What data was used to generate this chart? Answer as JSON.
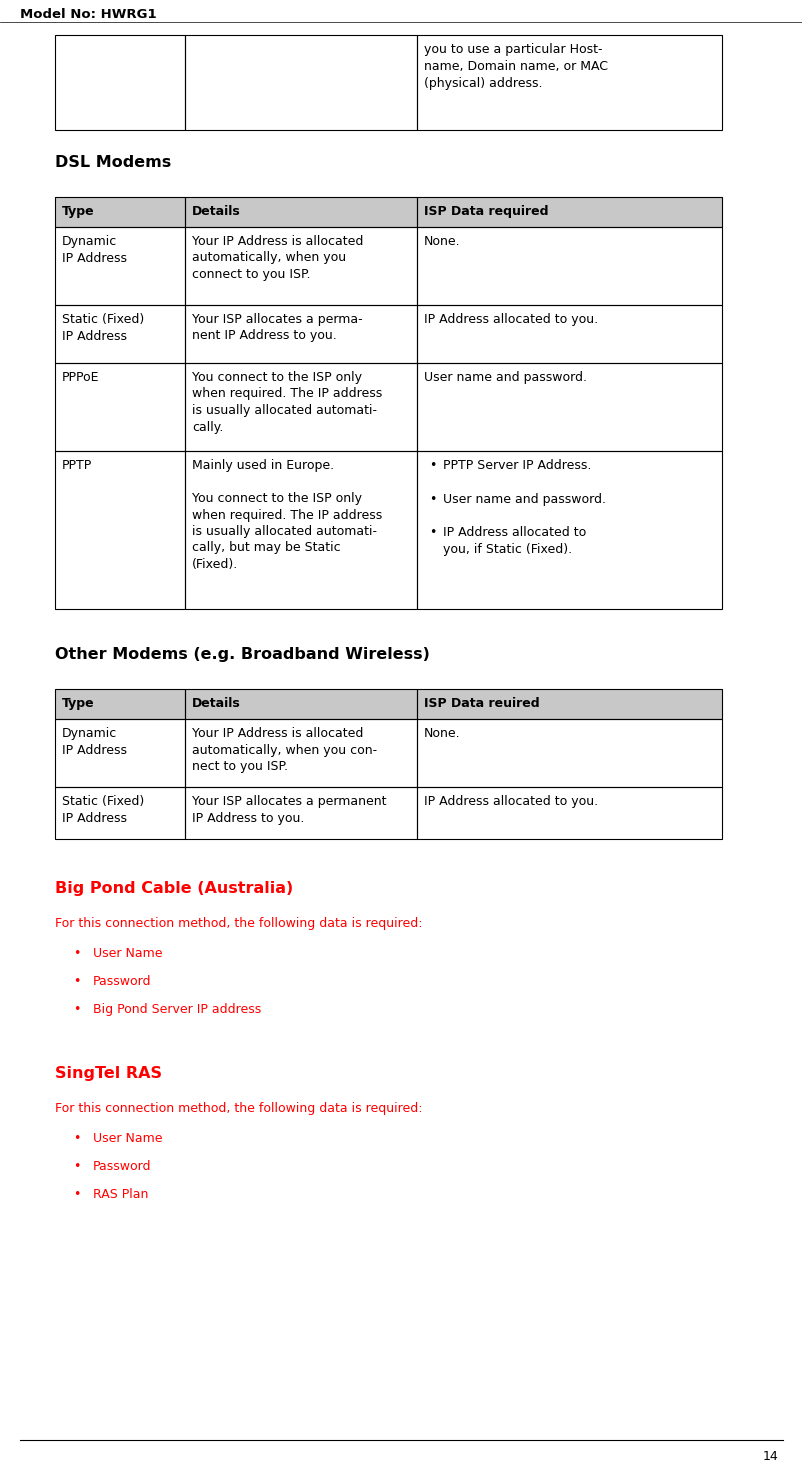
{
  "page_title": "Model No: HWRG1",
  "page_number": "14",
  "background_color": "#ffffff",
  "text_color": "#000000",
  "red_color": "#ff0000",
  "header_bg": "#c8c8c8",
  "table_border_color": "#000000",
  "top_table_text": "you to use a particular Host-\nname, Domain name, or MAC\n(physical) address.",
  "dsl_title": "DSL Modems",
  "dsl_headers": [
    "Type",
    "Details",
    "ISP Data requ​ired"
  ],
  "dsl_rows": [
    {
      "type": "Dynamic\nIP Address",
      "details": "Your IP Address is allocated\nautomatically, when you\nconnect to you ISP.",
      "isp": "None.",
      "isp_bullets": []
    },
    {
      "type": "Static (Fixed)\nIP Address",
      "details": "Your ISP allocates a perma-\nnent IP Address to you.",
      "isp": "IP Address allocated to you.",
      "isp_bullets": []
    },
    {
      "type": "PPPoE",
      "details": "You connect to the ISP only\nwhen required. The IP address\nis usually allocated automati-\ncally.",
      "isp": "User name and password.",
      "isp_bullets": []
    },
    {
      "type": "PPTP",
      "details": "Mainly used in Europe.\n\nYou connect to the ISP only\nwhen required. The IP address\nis usually allocated automati-\ncally, but may be Static\n(Fixed).",
      "isp": "",
      "isp_bullets": [
        "PPTP Server IP Address.",
        "User name and password.",
        "IP Address allocated to\nyou, if Static (Fixed)."
      ]
    }
  ],
  "other_title": "Other Modems (e.g. Broadband Wireless)",
  "other_headers": [
    "Type",
    "Details",
    "ISP Data re​uired"
  ],
  "other_rows": [
    {
      "type": "Dynamic\nIP Address",
      "details": "Your IP Address is allocated\nautomatically, when you con-\nnect to you ISP.",
      "isp": "None.",
      "isp_bullets": []
    },
    {
      "type": "Static (Fixed)\nIP Address",
      "details": "Your ISP allocates a permanent\nIP Address to you.",
      "isp": "IP Address allocated to you.",
      "isp_bullets": []
    }
  ],
  "bigpond_title": "Big Pond Cable (Australia)",
  "bigpond_intro": "For this connection method, the following data is required:",
  "bigpond_bullets": [
    "User Name",
    "Password",
    "Big Pond Server IP address"
  ],
  "singtel_title": "SingTel RAS",
  "singtel_intro": "For this connection method, the following data is required:",
  "singtel_bullets": [
    "User Name",
    "Password",
    "RAS Plan"
  ]
}
